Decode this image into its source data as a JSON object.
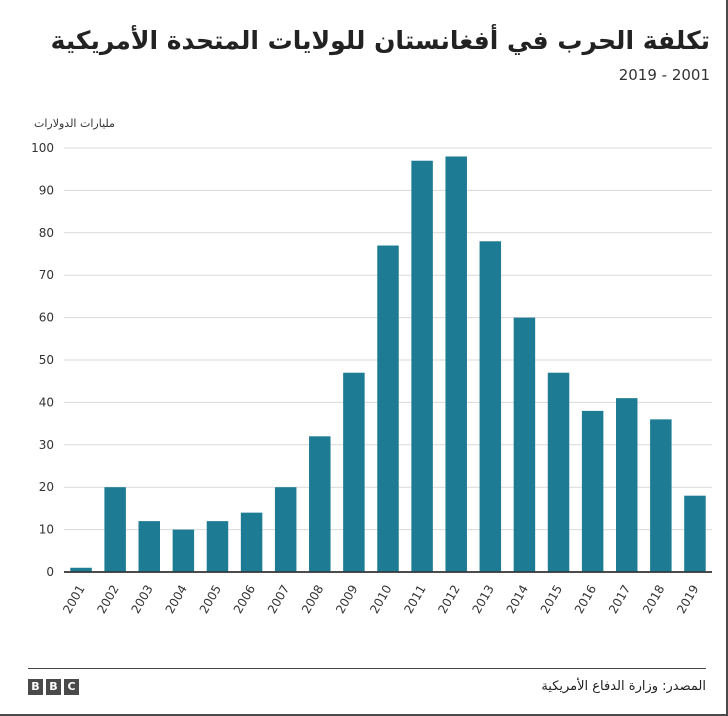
{
  "brand": {
    "logo_letters": [
      "B",
      "B",
      "C"
    ]
  },
  "source": "المصدر: وزارة الدفاع الأمريكية",
  "chart_data": {
    "type": "bar",
    "title": "تكلفة الحرب في أفغانستان للولايات المتحدة الأمريكية",
    "subtitle": "2019 - 2001",
    "ylabel": "مليارات الدولارات",
    "xlabel": "",
    "ylim": [
      0,
      100
    ],
    "yticks": [
      0,
      10,
      20,
      30,
      40,
      50,
      60,
      70,
      80,
      90,
      100
    ],
    "categories": [
      "2001",
      "2002",
      "2003",
      "2004",
      "2005",
      "2006",
      "2007",
      "2008",
      "2009",
      "2010",
      "2011",
      "2012",
      "2013",
      "2014",
      "2015",
      "2016",
      "2017",
      "2018",
      "2019"
    ],
    "values": [
      1,
      20,
      12,
      10,
      12,
      14,
      20,
      32,
      47,
      77,
      97,
      98,
      78,
      60,
      47,
      38,
      41,
      36,
      18
    ],
    "bar_color": "#1d7b94",
    "grid": true,
    "legend": "none"
  }
}
